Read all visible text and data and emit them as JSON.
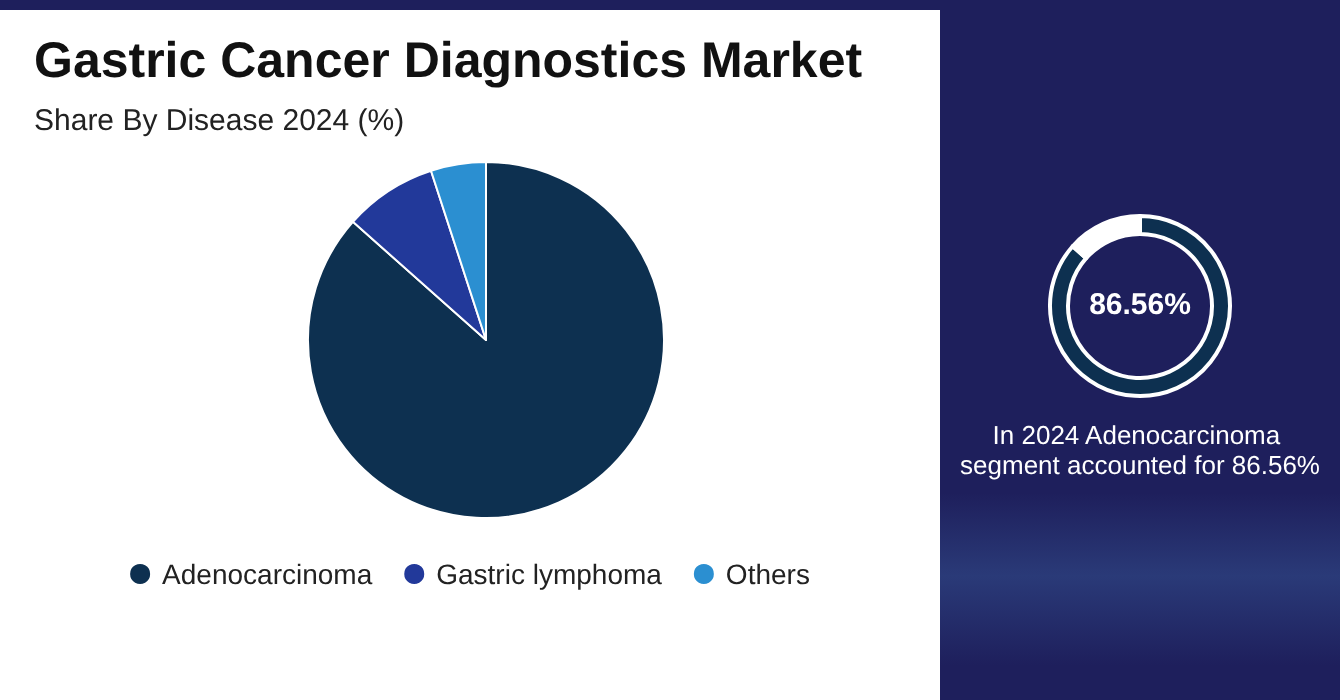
{
  "chart_data": [
    {
      "type": "pie",
      "title": "Gastric Cancer Diagnostics Market",
      "subtitle": "Share By Disease 2024 (%)",
      "categories": [
        "Adenocarcinoma",
        "Gastric lymphoma",
        "Others"
      ],
      "values": [
        86.56,
        8.44,
        5.0
      ],
      "colors": [
        "#0d3050",
        "#22399a",
        "#2b8fd1"
      ],
      "legend": "bottom"
    },
    {
      "type": "donut",
      "categories": [
        null,
        null
      ],
      "values": [
        86.56,
        13.44
      ],
      "colors": [
        "#0d3050",
        "#ffffff"
      ],
      "annotations": [
        "86.56%",
        "In 2024 Adenocarcinoma segment accounted for 86.56%"
      ]
    }
  ]
}
